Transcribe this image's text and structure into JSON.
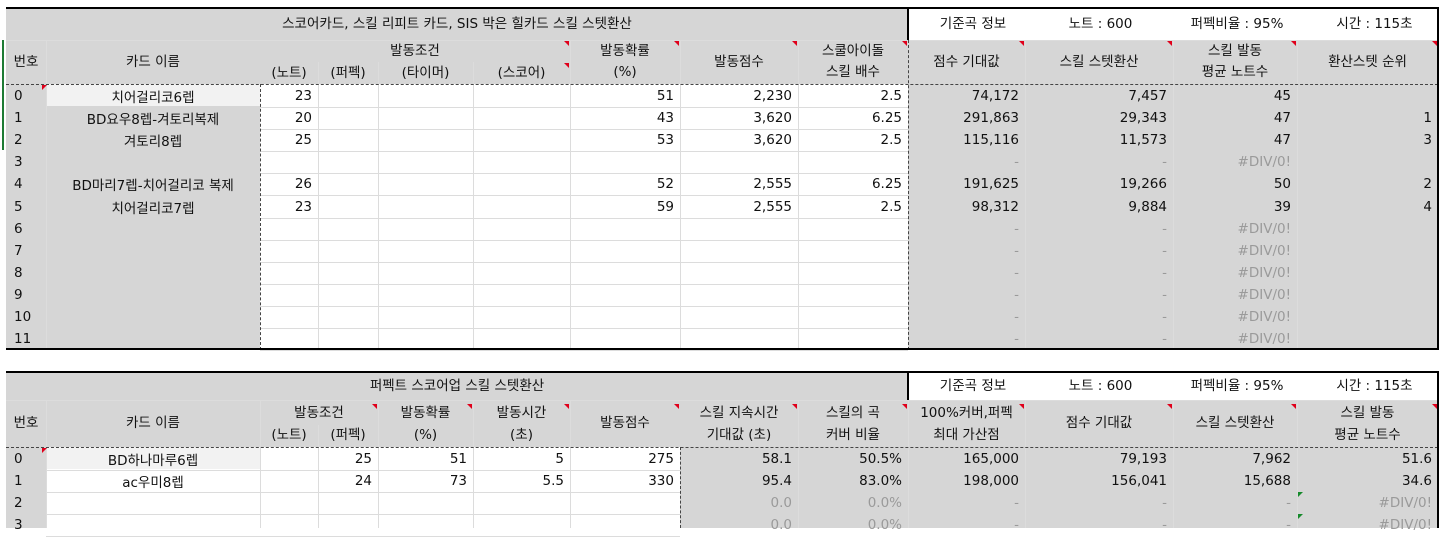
{
  "top": {
    "title": "스코어카드, 스킬 리피트 카드, SIS 박은 힐카드 스킬 스텟환산",
    "info": {
      "label": "기준곡 정보",
      "notes": "노트 : 600",
      "perfect": "퍼펙비율 : 95%",
      "time": "시간 : 115초"
    },
    "headers": {
      "no": "번호",
      "name": "카드 이름",
      "cond": "발동조건",
      "cond_note": "(노트)",
      "cond_perfect": "(퍼펙)",
      "cond_timer": "(타이머)",
      "cond_score": "(스코어)",
      "prob_1": "발동확률",
      "prob_2": "(%)",
      "score": "발동점수",
      "mult_1": "스쿨아이돌",
      "mult_2": "스킬 배수",
      "exp": "점수 기대값",
      "stat": "스킬 스텟환산",
      "avg_1": "스킬 발동",
      "avg_2": "평균 노트수",
      "rank": "환산스텟 순위"
    },
    "rows": [
      {
        "no": "0",
        "name": "치어걸리코6렙",
        "note": "23",
        "prob": "51",
        "score": "2,230",
        "mult": "2.5",
        "exp": "74,172",
        "stat": "7,457",
        "avg": "45",
        "rank": ""
      },
      {
        "no": "1",
        "name": "BD요우8렙-겨토리복제",
        "note": "20",
        "prob": "43",
        "score": "3,620",
        "mult": "6.25",
        "exp": "291,863",
        "stat": "29,343",
        "avg": "47",
        "rank": "1"
      },
      {
        "no": "2",
        "name": "겨토리8렙",
        "note": "25",
        "prob": "53",
        "score": "3,620",
        "mult": "2.5",
        "exp": "115,116",
        "stat": "11,573",
        "avg": "47",
        "rank": "3"
      },
      {
        "no": "3",
        "name": "",
        "note": "",
        "prob": "",
        "score": "",
        "mult": "",
        "exp": "-",
        "stat": "-",
        "avg": "#DIV/0!",
        "rank": ""
      },
      {
        "no": "4",
        "name": "BD마리7렙-치어걸리코 복제",
        "note": "26",
        "prob": "52",
        "score": "2,555",
        "mult": "6.25",
        "exp": "191,625",
        "stat": "19,266",
        "avg": "50",
        "rank": "2"
      },
      {
        "no": "5",
        "name": "치어걸리코7렙",
        "note": "23",
        "prob": "59",
        "score": "2,555",
        "mult": "2.5",
        "exp": "98,312",
        "stat": "9,884",
        "avg": "39",
        "rank": "4"
      },
      {
        "no": "6",
        "name": "",
        "note": "",
        "prob": "",
        "score": "",
        "mult": "",
        "exp": "-",
        "stat": "-",
        "avg": "#DIV/0!",
        "rank": ""
      },
      {
        "no": "7",
        "name": "",
        "note": "",
        "prob": "",
        "score": "",
        "mult": "",
        "exp": "-",
        "stat": "-",
        "avg": "#DIV/0!",
        "rank": ""
      },
      {
        "no": "8",
        "name": "",
        "note": "",
        "prob": "",
        "score": "",
        "mult": "",
        "exp": "-",
        "stat": "-",
        "avg": "#DIV/0!",
        "rank": ""
      },
      {
        "no": "9",
        "name": "",
        "note": "",
        "prob": "",
        "score": "",
        "mult": "",
        "exp": "-",
        "stat": "-",
        "avg": "#DIV/0!",
        "rank": ""
      },
      {
        "no": "10",
        "name": "",
        "note": "",
        "prob": "",
        "score": "",
        "mult": "",
        "exp": "-",
        "stat": "-",
        "avg": "#DIV/0!",
        "rank": ""
      },
      {
        "no": "11",
        "name": "",
        "note": "",
        "prob": "",
        "score": "",
        "mult": "",
        "exp": "-",
        "stat": "-",
        "avg": "#DIV/0!",
        "rank": ""
      }
    ]
  },
  "bottom": {
    "title": "퍼펙트 스코어업 스킬 스텟환산",
    "info": {
      "label": "기준곡 정보",
      "notes": "노트 : 600",
      "perfect": "퍼펙비율 : 95%",
      "time": "시간 : 115초"
    },
    "headers": {
      "no": "번호",
      "name": "카드 이름",
      "cond": "발동조건",
      "cond_note": "(노트)",
      "cond_perfect": "(퍼펙)",
      "prob_1": "발동확률",
      "prob_2": "(%)",
      "dur_1": "발동시간",
      "dur_2": "(초)",
      "score": "발동점수",
      "exp_time_1": "스킬 지속시간",
      "exp_time_2": "기대값 (초)",
      "cover_1": "스킬의 곡",
      "cover_2": "커버 비율",
      "max_1": "100%커버,퍼펙",
      "max_2": "최대 가산점",
      "exp": "점수 기대값",
      "stat": "스킬 스텟환산",
      "avg_1": "스킬 발동",
      "avg_2": "평균 노트수"
    },
    "rows": [
      {
        "no": "0",
        "name": "BD하나마루6렙",
        "note": "25",
        "prob": "51",
        "dur": "5",
        "score": "275",
        "exp_time": "58.1",
        "cover": "50.5%",
        "max": "165,000",
        "exp": "79,193",
        "stat": "7,962",
        "avg": "51.6"
      },
      {
        "no": "1",
        "name": "ac우미8렙",
        "note": "24",
        "prob": "73",
        "dur": "5.5",
        "score": "330",
        "exp_time": "95.4",
        "cover": "83.0%",
        "max": "198,000",
        "exp": "156,041",
        "stat": "15,688",
        "avg": "34.6"
      },
      {
        "no": "2",
        "name": "",
        "note": "",
        "prob": "",
        "dur": "",
        "score": "",
        "exp_time": "0.0",
        "cover": "0.0%",
        "max": "-",
        "exp": "-",
        "stat": "-",
        "avg": "#DIV/0!"
      },
      {
        "no": "3",
        "name": "",
        "note": "",
        "prob": "",
        "dur": "",
        "score": "",
        "exp_time": "0.0",
        "cover": "0.0%",
        "max": "-",
        "exp": "-",
        "stat": "-",
        "avg": "#DIV/0!"
      }
    ]
  }
}
